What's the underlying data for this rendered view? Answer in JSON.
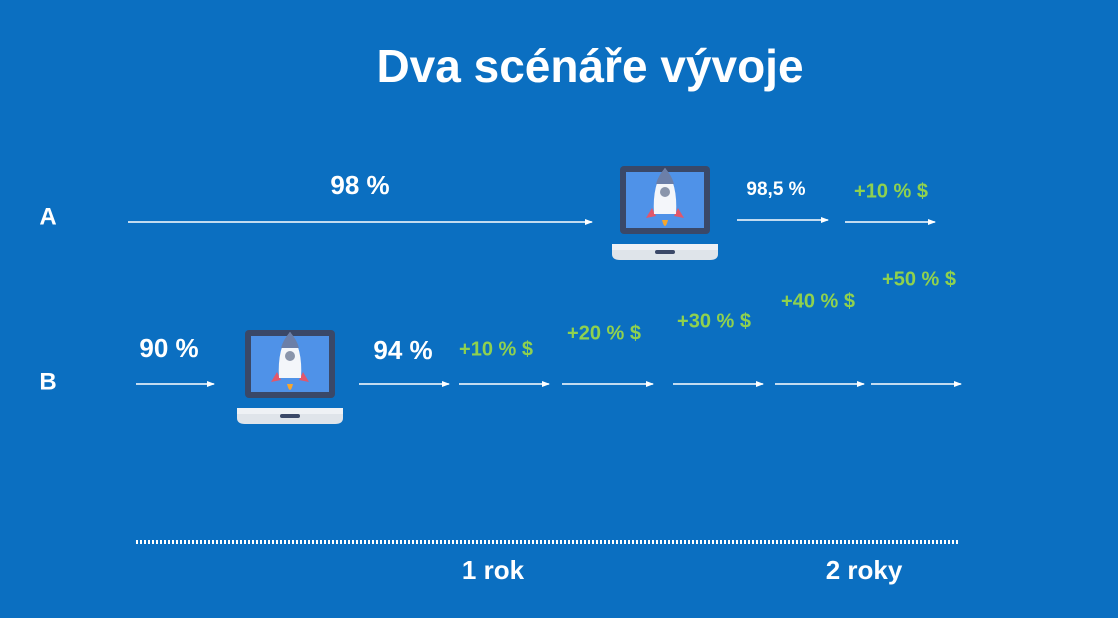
{
  "title": "Dva scénáře vývoje",
  "rows": [
    {
      "label": "A",
      "steps": [
        "98 %",
        "98,5 %",
        "+10 % $"
      ]
    },
    {
      "label": "B",
      "steps": [
        "90 %",
        "94 %",
        "+10 % $",
        "+20 % $",
        "+30 % $",
        "+40 % $",
        "+50 % $"
      ]
    }
  ],
  "timeline": [
    "1 rok",
    "2 roky"
  ]
}
